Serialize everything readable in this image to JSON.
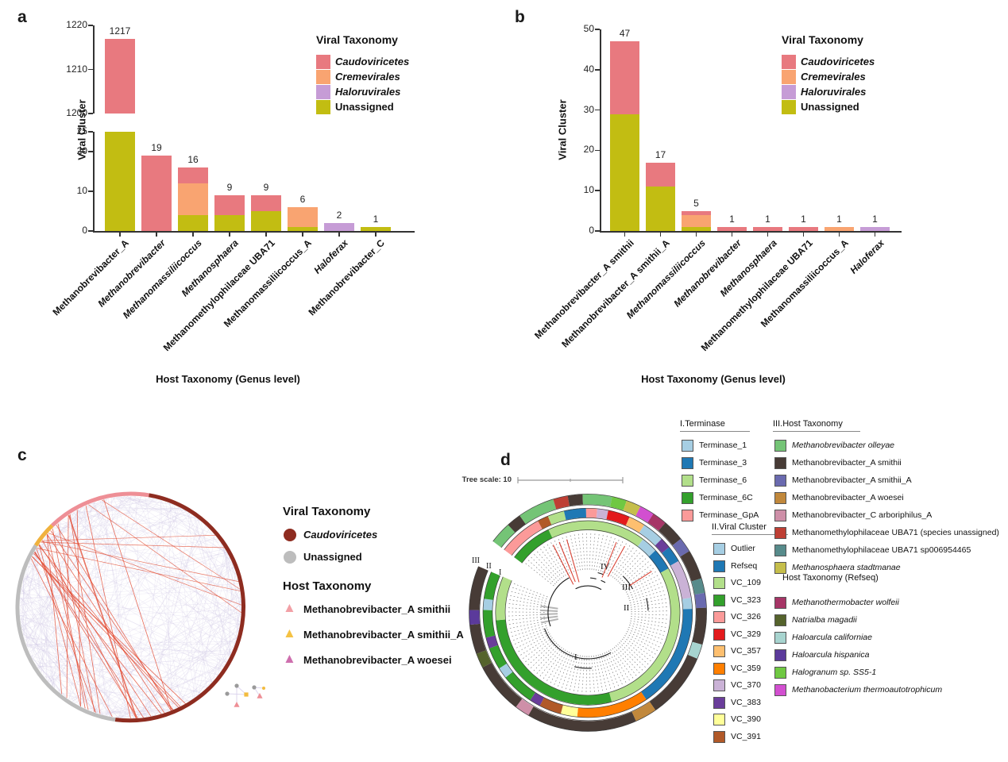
{
  "viral_taxonomy_legend": {
    "title": "Viral Taxonomy",
    "items": [
      {
        "label": "Caudoviricetes",
        "color": "#E8797F",
        "italic": true
      },
      {
        "label": "Cremevirales",
        "color": "#F9A471",
        "italic": true
      },
      {
        "label": "Haloruvirales",
        "color": "#C69CD6",
        "italic": true
      },
      {
        "label": "Unassigned",
        "color": "#C2BD12",
        "italic": false
      }
    ]
  },
  "panels": {
    "a": {
      "letter": "a"
    },
    "b": {
      "letter": "b"
    },
    "c": {
      "letter": "c",
      "viral_legend": {
        "title": "Viral Taxonomy",
        "items": [
          {
            "label": "Caudoviricetes",
            "color": "#8E2C20",
            "shape": "circle",
            "italic": true
          },
          {
            "label": "Unassigned",
            "color": "#BDBDBD",
            "shape": "circle",
            "italic": false
          }
        ]
      },
      "host_legend": {
        "title": "Host Taxonomy",
        "items": [
          {
            "label": "Methanobrevibacter_A smithii",
            "color": "#F2A0A6",
            "shape": "triangle"
          },
          {
            "label": "Methanobrevibacter_A smithii_A",
            "color": "#F5C244",
            "shape": "triangle"
          },
          {
            "label": "Methanobrevibacter_A woesei",
            "color": "#CE6FAE",
            "shape": "triangle"
          }
        ]
      }
    },
    "d": {
      "letter": "d",
      "tree_scale_label": "Tree scale: 10",
      "ring_labels": [
        "III",
        "II",
        "I"
      ],
      "clade_labels": [
        "I",
        "II",
        "III",
        "IV"
      ],
      "legends": {
        "terminase": {
          "title": "I.Terminase",
          "items": [
            {
              "label": "Terminase_1",
              "color": "#A6CEE3"
            },
            {
              "label": "Terminase_3",
              "color": "#1F78B4"
            },
            {
              "label": "Terminase_6",
              "color": "#B2DF8A"
            },
            {
              "label": "Terminase_6C",
              "color": "#33A02C"
            },
            {
              "label": "Terminase_GpA",
              "color": "#FB9A99"
            }
          ]
        },
        "viral_cluster": {
          "title": "II.Viral Cluster",
          "items": [
            {
              "label": "Outlier",
              "color": "#A6CEE3"
            },
            {
              "label": "Refseq",
              "color": "#1F78B4"
            },
            {
              "label": "VC_109",
              "color": "#B2DF8A"
            },
            {
              "label": "VC_323",
              "color": "#33A02C"
            },
            {
              "label": "VC_326",
              "color": "#FB9A99"
            },
            {
              "label": "VC_329",
              "color": "#E31A1C"
            },
            {
              "label": "VC_357",
              "color": "#FDBF6F"
            },
            {
              "label": "VC_359",
              "color": "#FF7F00"
            },
            {
              "label": "VC_370",
              "color": "#CAB2D6"
            },
            {
              "label": "VC_383",
              "color": "#6A3D9A"
            },
            {
              "label": "VC_390",
              "color": "#FFFF99"
            },
            {
              "label": "VC_391",
              "color": "#B15928"
            }
          ]
        },
        "host_taxonomy": {
          "title": "III.Host Taxonomy",
          "items": [
            {
              "label": "Methanobrevibacter olleyae",
              "color": "#74C476",
              "italic": true
            },
            {
              "label": "Methanobrevibacter_A smithii",
              "color": "#473B36",
              "italic": false
            },
            {
              "label": "Methanobrevibacter_A smithii_A",
              "color": "#6A6AAF",
              "italic": false
            },
            {
              "label": "Methanobrevibacter_A woesei",
              "color": "#C1883C",
              "italic": false
            },
            {
              "label": "Methanobrevibacter_C arboriphilus_A",
              "color": "#CE8FA8",
              "italic": false
            },
            {
              "label": "Methanomethylophilaceae UBA71 (species unassigned)",
              "color": "#BE3F34",
              "italic": false
            },
            {
              "label": "Methanomethylophilaceae UBA71 sp006954465",
              "color": "#578B8B",
              "italic": false
            },
            {
              "label": "Methanosphaera stadtmanae",
              "color": "#C5BE4B",
              "italic": true
            }
          ]
        },
        "host_taxonomy_refseq": {
          "title": "Host Taxonomy (Refseq)",
          "items": [
            {
              "label": "Methanothermobacter wolfeii",
              "color": "#A63566",
              "italic": true
            },
            {
              "label": "Natrialba magadii",
              "color": "#55632C",
              "italic": true
            },
            {
              "label": "Haloarcula californiae",
              "color": "#A7D4CF",
              "italic": true
            },
            {
              "label": "Haloarcula hispanica",
              "color": "#5B3A9B",
              "italic": true
            },
            {
              "label": "Halogranum sp. SS5-1",
              "color": "#6FC842",
              "italic": true
            },
            {
              "label": "Methanobacterium thermoautotrophicum",
              "color": "#D24FD0",
              "italic": true
            }
          ]
        }
      }
    }
  },
  "chart_data": [
    {
      "panel": "a",
      "type": "bar",
      "stacked": true,
      "xlabel": "Host Taxonomy (Genus level)",
      "ylabel": "Viral Cluster",
      "legend_title": "Viral Taxonomy",
      "broken_axis": {
        "upper": [
          1200,
          1220
        ],
        "lower": [
          0,
          25
        ]
      },
      "upper_ticks": [
        1220,
        1210,
        1200
      ],
      "lower_ticks": [
        25,
        20,
        10,
        0
      ],
      "series_colors": {
        "Caudoviricetes": "#E8797F",
        "Cremevirales": "#F9A471",
        "Haloruvirales": "#C69CD6",
        "Unassigned": "#C2BD12"
      },
      "bars": [
        {
          "category": "Methanobrevibacter_A",
          "italic": false,
          "total": 1217,
          "segments": [
            [
              "Unassigned",
              0,
              25
            ],
            [
              "Caudoviricetes",
              25,
              1217
            ]
          ]
        },
        {
          "category": "Methanobrevibacter",
          "italic": true,
          "total": 19,
          "segments": [
            [
              "Caudoviricetes",
              0,
              19
            ]
          ]
        },
        {
          "category": "Methanomassiliicoccus",
          "italic": true,
          "total": 16,
          "segments": [
            [
              "Unassigned",
              0,
              4
            ],
            [
              "Cremevirales",
              4,
              12
            ],
            [
              "Caudoviricetes",
              12,
              16
            ]
          ]
        },
        {
          "category": "Methanosphaera",
          "italic": true,
          "total": 9,
          "segments": [
            [
              "Unassigned",
              0,
              4
            ],
            [
              "Caudoviricetes",
              4,
              9
            ]
          ]
        },
        {
          "category": "Methanomethylophilaceae UBA71",
          "italic": false,
          "total": 9,
          "segments": [
            [
              "Unassigned",
              0,
              5
            ],
            [
              "Caudoviricetes",
              5,
              9
            ]
          ]
        },
        {
          "category": "Methanomassiliicoccus_A",
          "italic": false,
          "total": 6,
          "segments": [
            [
              "Unassigned",
              0,
              1
            ],
            [
              "Cremevirales",
              1,
              6
            ]
          ]
        },
        {
          "category": "Haloferax",
          "italic": true,
          "total": 2,
          "segments": [
            [
              "Haloruvirales",
              0,
              2
            ]
          ]
        },
        {
          "category": "Methanobrevibacter_C",
          "italic": false,
          "total": 1,
          "segments": [
            [
              "Unassigned",
              0,
              1
            ]
          ]
        }
      ]
    },
    {
      "panel": "b",
      "type": "bar",
      "stacked": true,
      "xlabel": "Host Taxonomy (Genus level)",
      "ylabel": "Viral Cluster",
      "legend_title": "Viral Taxonomy",
      "ylim": [
        0,
        50
      ],
      "ticks": [
        50,
        40,
        30,
        20,
        10,
        0
      ],
      "series_colors": {
        "Caudoviricetes": "#E8797F",
        "Cremevirales": "#F9A471",
        "Haloruvirales": "#C69CD6",
        "Unassigned": "#C2BD12"
      },
      "bars": [
        {
          "category": "Methanobrevibacter_A smithii",
          "italic": false,
          "total": 47,
          "segments": [
            [
              "Unassigned",
              0,
              29
            ],
            [
              "Caudoviricetes",
              29,
              47
            ]
          ]
        },
        {
          "category": "Methanobrevibacter_A smithii_A",
          "italic": false,
          "total": 17,
          "segments": [
            [
              "Unassigned",
              0,
              11
            ],
            [
              "Caudoviricetes",
              11,
              17
            ]
          ]
        },
        {
          "category": "Methanomassiliicoccus",
          "italic": true,
          "total": 5,
          "segments": [
            [
              "Unassigned",
              0,
              1
            ],
            [
              "Cremevirales",
              1,
              4
            ],
            [
              "Caudoviricetes",
              4,
              5
            ]
          ]
        },
        {
          "category": "Methanobrevibacter",
          "italic": true,
          "total": 1,
          "segments": [
            [
              "Caudoviricetes",
              0,
              1
            ]
          ]
        },
        {
          "category": "Methanosphaera",
          "italic": true,
          "total": 1,
          "segments": [
            [
              "Caudoviricetes",
              0,
              1
            ]
          ]
        },
        {
          "category": "Methanomethylophilaceae UBA71",
          "italic": false,
          "total": 1,
          "segments": [
            [
              "Caudoviricetes",
              0,
              1
            ]
          ]
        },
        {
          "category": "Methanomassiliicoccus_A",
          "italic": false,
          "total": 1,
          "segments": [
            [
              "Cremevirales",
              0,
              1
            ]
          ]
        },
        {
          "category": "Haloferax",
          "italic": true,
          "total": 1,
          "segments": [
            [
              "Haloruvirales",
              0,
              1
            ]
          ]
        }
      ]
    },
    {
      "panel": "c",
      "type": "chord-network",
      "node_groups": [
        {
          "label": "Caudoviricetes",
          "color": "#8E2C20",
          "rim_arc_deg": [
            9,
            188
          ]
        },
        {
          "label": "Unassigned",
          "color": "#BDBDBD",
          "rim_arc_deg": [
            188,
            303
          ]
        },
        {
          "label": "Methanobrevibacter_A smithii_A",
          "color": "#F0B23E",
          "rim_arc_deg": [
            303,
            316
          ]
        },
        {
          "label": "Methanobrevibacter_A smithii",
          "color": "#EE8F96",
          "rim_arc_deg": [
            316,
            369
          ]
        }
      ],
      "edge_styles": {
        "default_color": "#CFC7E5",
        "highlight_color": "#E2492F"
      }
    },
    {
      "panel": "d",
      "type": "circular-phylogenetic-tree",
      "tree_scale": 10,
      "gap_deg": [
        293,
        307
      ],
      "clade_labels": [
        "I",
        "II",
        "III",
        "IV"
      ],
      "rings": {
        "I": {
          "radius": 110,
          "width": 12,
          "segments": [
            [
              "#33A02C",
              8
            ],
            [
              "#B2DF8A",
              18
            ],
            [
              "#A6CEE3",
              3
            ],
            [
              "#1F78B4",
              4
            ],
            [
              "#B2DF8A",
              30
            ],
            [
              "#33A02C",
              29
            ],
            [
              "#B2DF8A",
              8
            ]
          ]
        },
        "II": {
          "radius": 126,
          "width": 12,
          "segments": [
            [
              "#FB9A99",
              8
            ],
            [
              "#B15928",
              2
            ],
            [
              "#B2DF8A",
              3
            ],
            [
              "#1F78B4",
              4
            ],
            [
              "#FB9A99",
              2
            ],
            [
              "#CAB2D6",
              2
            ],
            [
              "#E31A1C",
              4
            ],
            [
              "#FDBF6F",
              3
            ],
            [
              "#A6CEE3",
              4
            ],
            [
              "#6A3D9A",
              2
            ],
            [
              "#1F78B4",
              3
            ],
            [
              "#CAB2D6",
              7
            ],
            [
              "#A6CEE3",
              2
            ],
            [
              "#1F78B4",
              19
            ],
            [
              "#FF7F00",
              13
            ],
            [
              "#FFFF99",
              3
            ],
            [
              "#B15928",
              4
            ],
            [
              "#6A3D9A",
              2
            ],
            [
              "#33A02C",
              6
            ],
            [
              "#A6CEE3",
              2
            ],
            [
              "#33A02C",
              4
            ],
            [
              "#6A3D9A",
              2
            ],
            [
              "#33A02C",
              5
            ],
            [
              "#A6CEE3",
              2
            ],
            [
              "#33A02C",
              5
            ]
          ]
        },
        "III": {
          "radius": 143,
          "width": 13,
          "segments": [
            [
              "#74C476",
              3
            ],
            [
              "#473B36",
              2
            ],
            [
              "#74C476",
              5
            ],
            [
              "#BE3F34",
              2
            ],
            [
              "#473B36",
              2
            ],
            [
              "#74C476",
              4
            ],
            [
              "#6FC842",
              2
            ],
            [
              "#C5BE4B",
              2
            ],
            [
              "#D24FD0",
              2
            ],
            [
              "#A63566",
              2
            ],
            [
              "#473B36",
              3
            ],
            [
              "#6A6AAF",
              2
            ],
            [
              "#473B36",
              4
            ],
            [
              "#578B8B",
              2
            ],
            [
              "#6A6AAF",
              2
            ],
            [
              "#473B36",
              5
            ],
            [
              "#A7D4CF",
              2
            ],
            [
              "#473B36",
              9
            ],
            [
              "#C1883C",
              3
            ],
            [
              "#473B36",
              15
            ],
            [
              "#CE8FA8",
              2
            ],
            [
              "#473B36",
              7
            ],
            [
              "#55632C",
              2
            ],
            [
              "#473B36",
              4
            ],
            [
              "#5B3A9B",
              2
            ],
            [
              "#473B36",
              6
            ]
          ]
        }
      }
    }
  ]
}
